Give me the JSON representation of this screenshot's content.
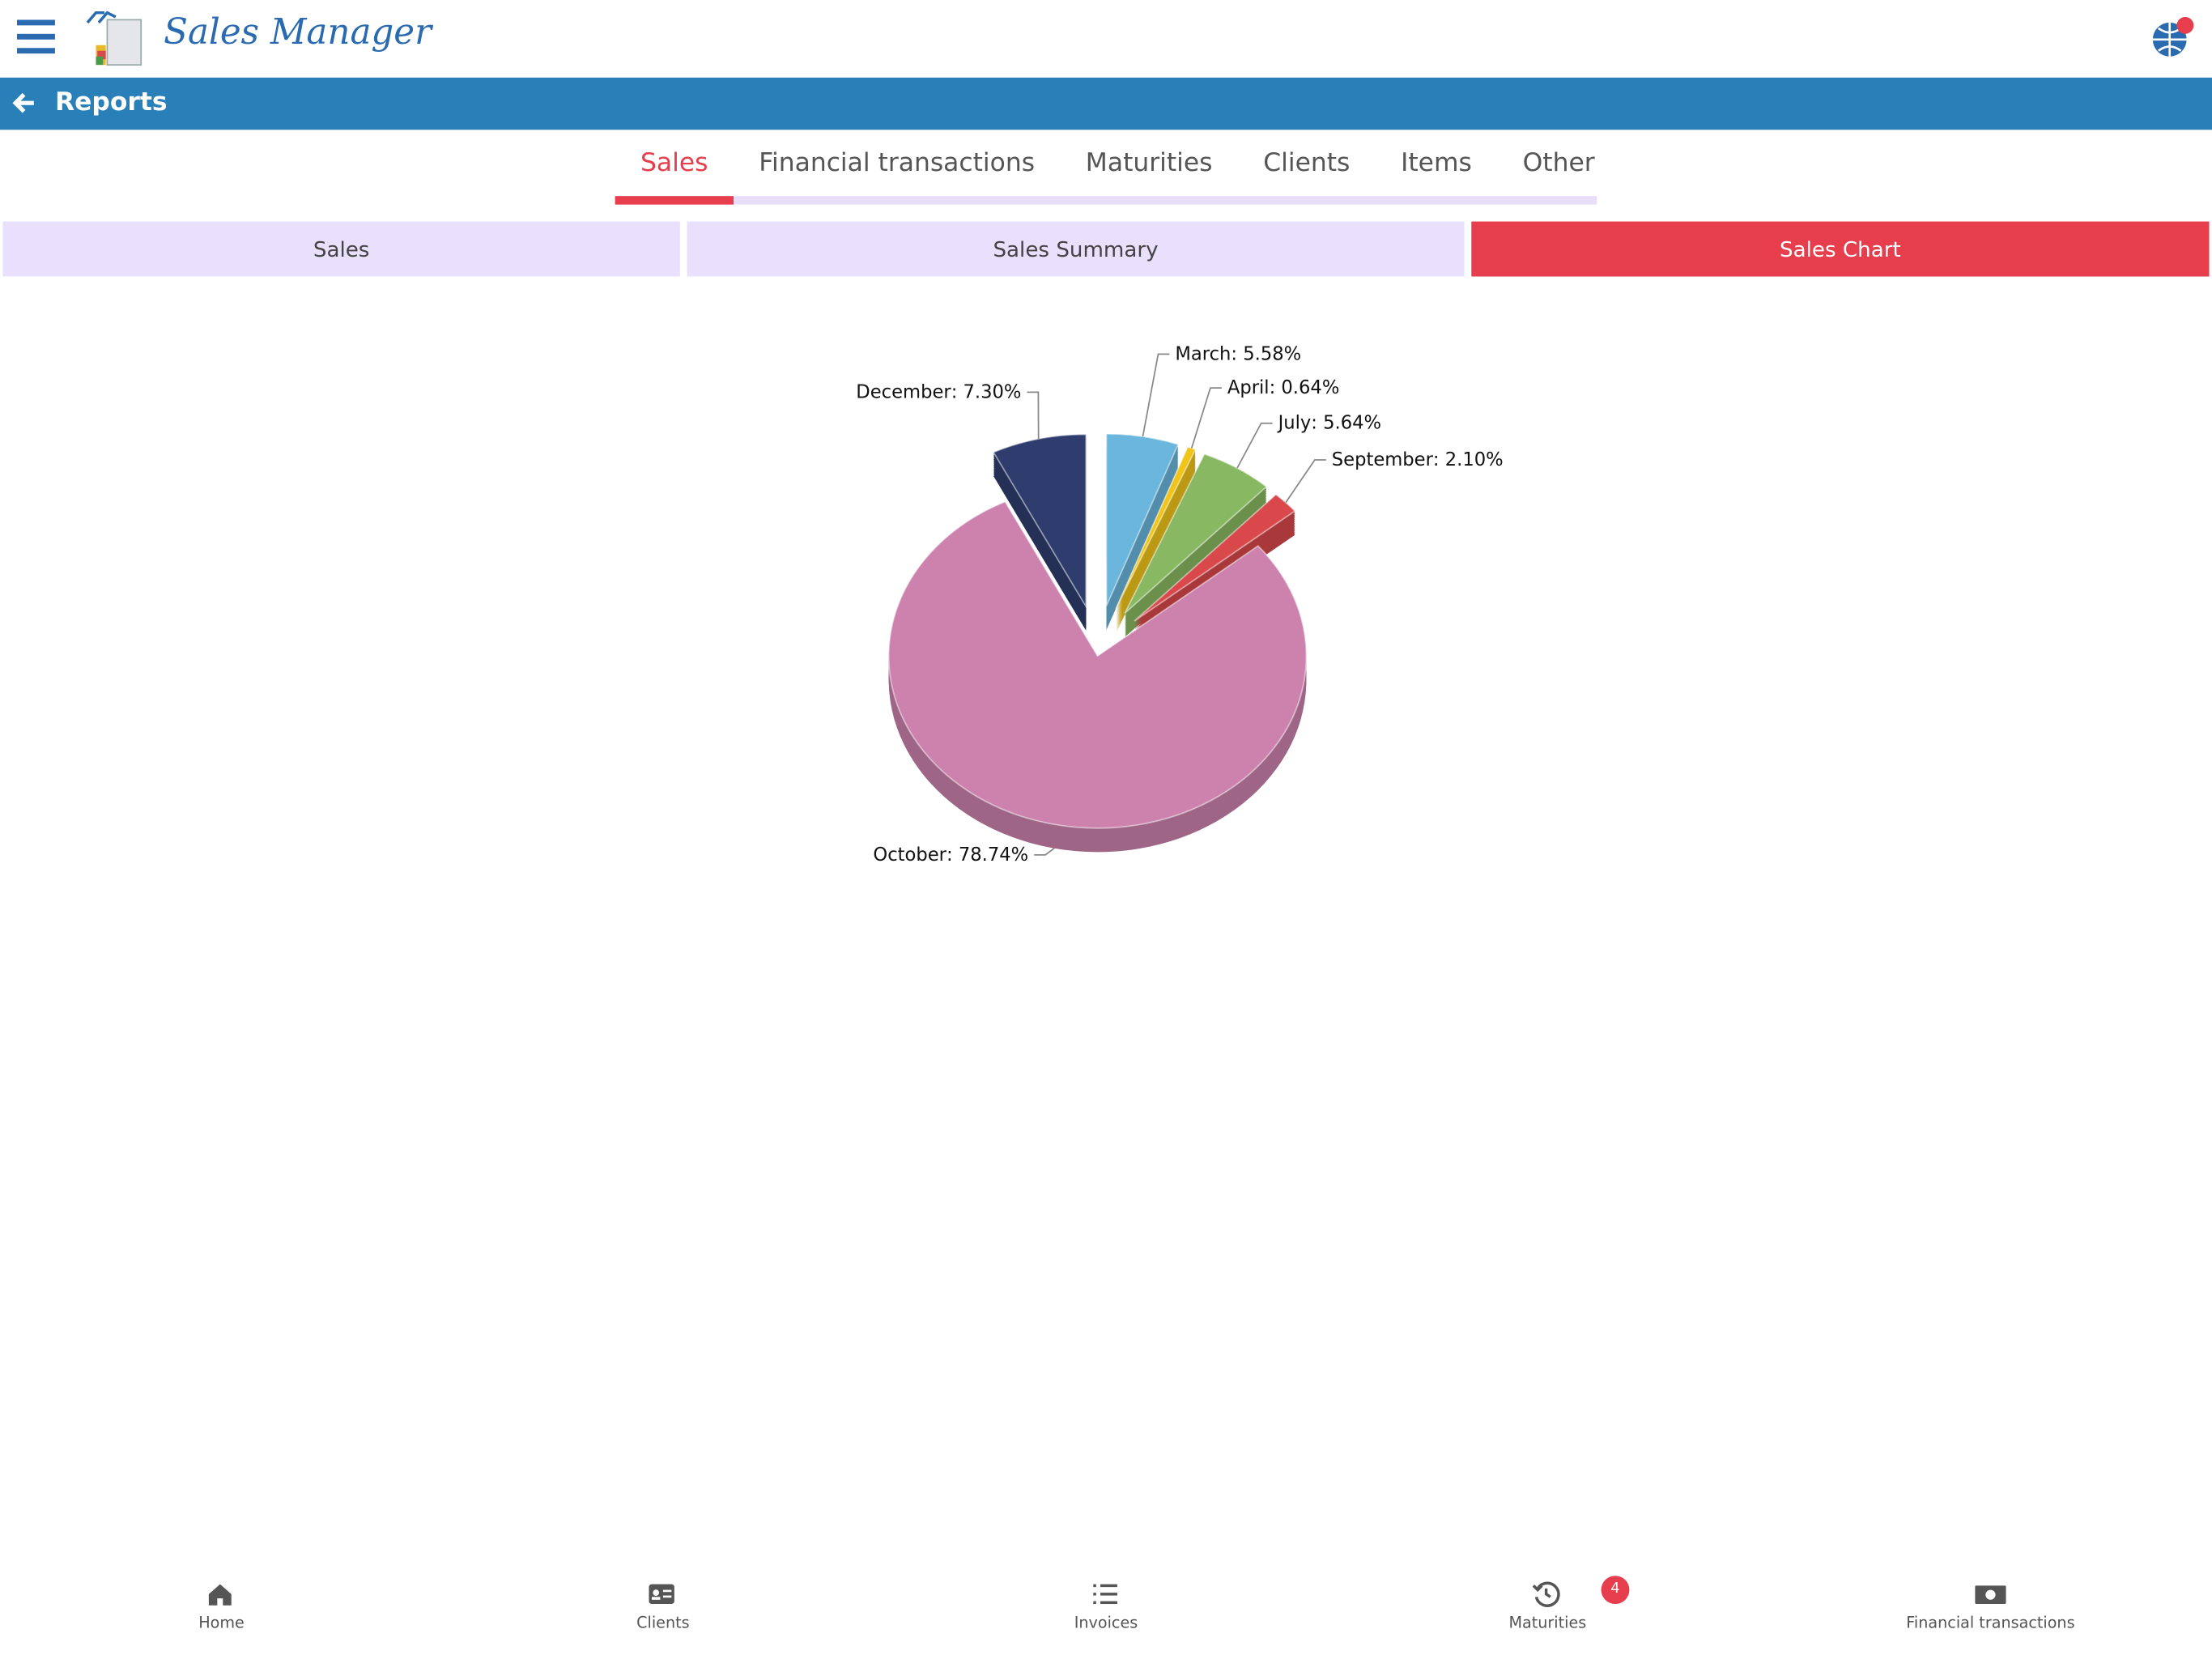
{
  "header": {
    "app_name": "Sales Manager"
  },
  "nav": {
    "title": "Reports"
  },
  "tabs": [
    "Sales",
    "Financial transactions",
    "Maturities",
    "Clients",
    "Items",
    "Other"
  ],
  "subtabs": [
    "Sales",
    "Sales Summary",
    "Sales Chart"
  ],
  "chart_data": {
    "type": "pie",
    "categories": [
      "March",
      "April",
      "July",
      "September",
      "October",
      "December"
    ],
    "values": [
      5.58,
      0.64,
      5.64,
      2.1,
      78.74,
      7.3
    ],
    "value_labels": [
      "5.58%",
      "0.64%",
      "5.64%",
      "2.10%",
      "78.74%",
      "7.30%"
    ],
    "colors": [
      "#6ab6dc",
      "#f0c419",
      "#88b862",
      "#d9484b",
      "#cc82ad",
      "#2e3d6e"
    ]
  },
  "bottom_nav": {
    "items": [
      "Home",
      "Clients",
      "Invoices",
      "Maturities",
      "Financial transactions"
    ],
    "badge": "4"
  }
}
